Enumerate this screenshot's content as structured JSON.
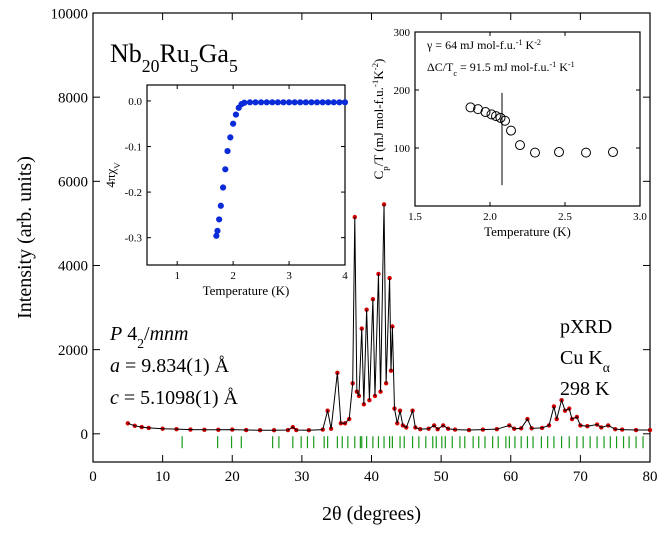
{
  "chart_data": [
    {
      "type": "xrd",
      "title": [
        {
          "t": "Nb"
        },
        {
          "t": "20",
          "s": "sub"
        },
        {
          "t": "Ru"
        },
        {
          "t": "5",
          "s": "sub"
        },
        {
          "t": "Ga"
        },
        {
          "t": "5",
          "s": "sub"
        }
      ],
      "x_label": "2θ (degrees)",
      "y_label": "Intensity (arb. units)",
      "annotations_left": [
        [
          {
            "t": "P",
            "i": true
          },
          {
            "t": " 4"
          },
          {
            "t": "2",
            "s": "sub"
          },
          {
            "t": "/"
          },
          {
            "t": "mnm",
            "i": true
          }
        ],
        [
          {
            "t": "a",
            "i": true
          },
          {
            "t": " = 9.834(1) Å"
          }
        ],
        [
          {
            "t": "c",
            "i": true
          },
          {
            "t": " = 5.1098(1) Å"
          }
        ]
      ],
      "annotations_right": [
        [
          {
            "t": "pXRD"
          }
        ],
        [
          {
            "t": "Cu K"
          },
          {
            "t": "α",
            "s": "sub"
          }
        ],
        [
          {
            "t": "298 K"
          }
        ]
      ],
      "xlim": [
        0,
        80
      ],
      "ylim": [
        -670,
        10000
      ],
      "xticks": [
        0,
        10,
        20,
        30,
        40,
        50,
        60,
        70,
        80
      ],
      "yticks": [
        0,
        2000,
        4000,
        6000,
        8000,
        10000
      ],
      "x": [
        5,
        6,
        7,
        8,
        10,
        12,
        14,
        16,
        18,
        20,
        22,
        24,
        26,
        28,
        28.7,
        29.2,
        31,
        33,
        33.7,
        34.2,
        35.1,
        35.6,
        36.2,
        36.8,
        37.3,
        37.6,
        37.9,
        38.2,
        38.6,
        38.9,
        39.3,
        39.7,
        40.2,
        40.5,
        41.0,
        41.3,
        41.8,
        42.1,
        42.6,
        42.8,
        43.0,
        43.3,
        43.7,
        44.1,
        44.5,
        45.0,
        45.9,
        46.3,
        47,
        48.2,
        49,
        49.5,
        50.3,
        51,
        52,
        54,
        56,
        58,
        59.8,
        60.5,
        61.5,
        62.4,
        63,
        64.5,
        65.5,
        66.2,
        66.6,
        67.3,
        67.8,
        68.4,
        68.8,
        69.5,
        70,
        71,
        72.4,
        73,
        74,
        75,
        76,
        78,
        80
      ],
      "series": [
        {
          "color": "#d40000",
          "line_color": "#000000",
          "values": [
            250,
            190,
            160,
            140,
            120,
            110,
            100,
            95,
            95,
            100,
            90,
            85,
            85,
            90,
            160,
            90,
            85,
            100,
            550,
            120,
            1450,
            250,
            250,
            350,
            1200,
            5150,
            1000,
            900,
            2500,
            700,
            2950,
            800,
            3200,
            900,
            3800,
            1000,
            5450,
            1200,
            3700,
            1500,
            2550,
            600,
            250,
            550,
            200,
            150,
            550,
            150,
            110,
            120,
            200,
            110,
            200,
            120,
            100,
            90,
            100,
            110,
            200,
            120,
            130,
            350,
            130,
            140,
            200,
            650,
            350,
            800,
            550,
            600,
            350,
            400,
            200,
            180,
            220,
            150,
            200,
            110,
            100,
            90,
            90
          ]
        }
      ],
      "bragg": {
        "color": "#1a9a1a",
        "y": -200,
        "x": [
          12.8,
          17.9,
          19.9,
          21.3,
          25.8,
          26.7,
          28.7,
          29.9,
          30.8,
          31.7,
          33.2,
          33.7,
          35.1,
          35.8,
          36.6,
          37.6,
          38.4,
          38.6,
          39.3,
          40.2,
          41.0,
          41.8,
          42.6,
          43.0,
          44.1,
          44.7,
          45.9,
          46.8,
          47.8,
          48.8,
          49.3,
          50.1,
          50.6,
          51.6,
          52.7,
          53.4,
          54.6,
          55.4,
          56.3,
          57.4,
          58.2,
          59.3,
          59.8,
          60.6,
          61.5,
          62.4,
          63.2,
          64.4,
          65.3,
          66.2,
          67.3,
          68.4,
          69.5,
          70.4,
          71.4,
          72.4,
          73.4,
          74.3,
          75.2,
          76.2,
          77.0,
          78.0,
          79.0
        ]
      }
    },
    {
      "type": "scatter",
      "x_label": "Temperature (K)",
      "y_label": [
        {
          "t": "4πχ"
        },
        {
          "t": "V",
          "s": "sub"
        }
      ],
      "xlim": [
        0.46,
        4
      ],
      "ylim": [
        -0.36,
        0.035
      ],
      "xticks": [
        1,
        2,
        3,
        4
      ],
      "yticks": [
        {
          "value": 0,
          "label": "0.0"
        },
        -0.1,
        -0.2,
        -0.3
      ],
      "x": [
        1.7,
        1.72,
        1.75,
        1.78,
        1.82,
        1.86,
        1.9,
        1.95,
        2.0,
        2.05,
        2.1,
        2.15,
        2.2,
        2.3,
        2.4,
        2.5,
        2.6,
        2.7,
        2.8,
        2.9,
        3.0,
        3.1,
        3.2,
        3.3,
        3.4,
        3.5,
        3.6,
        3.7,
        3.8,
        3.9,
        4.0
      ],
      "series": [
        {
          "color": "#0a2bd8",
          "fill": true,
          "values": [
            -0.296,
            -0.285,
            -0.26,
            -0.23,
            -0.19,
            -0.15,
            -0.11,
            -0.08,
            -0.05,
            -0.03,
            -0.015,
            -0.007,
            -0.004,
            -0.003,
            -0.003,
            -0.003,
            -0.003,
            -0.003,
            -0.003,
            -0.003,
            -0.003,
            -0.003,
            -0.003,
            -0.003,
            -0.003,
            -0.003,
            -0.003,
            -0.003,
            -0.003,
            -0.003,
            -0.003
          ]
        }
      ]
    },
    {
      "type": "scatter",
      "x_label": "Temperature (K)",
      "y_label": [
        {
          "t": "C"
        },
        {
          "t": "p",
          "s": "sub"
        },
        {
          "t": "/T (mJ mol-f.u."
        },
        {
          "t": "-1",
          "s": "sup"
        },
        {
          "t": "K"
        },
        {
          "t": "-2",
          "s": "sup"
        },
        {
          "t": ")"
        }
      ],
      "annotations": [
        [
          {
            "t": "γ = 64 mJ mol-f.u."
          },
          {
            "t": "-1",
            "s": "sup"
          },
          {
            "t": " K"
          },
          {
            "t": "-2",
            "s": "sup"
          }
        ],
        [
          {
            "t": "ΔC/T"
          },
          {
            "t": "c",
            "s": "sub"
          },
          {
            "t": " = 91.5 mJ mol-f.u."
          },
          {
            "t": "-1",
            "s": "sup"
          },
          {
            "t": " K"
          },
          {
            "t": "-1",
            "s": "sup"
          }
        ]
      ],
      "xlim": [
        1.5,
        3.0
      ],
      "ylim": [
        0,
        300
      ],
      "xticks": [
        1.5,
        {
          "value": 2,
          "label": "2.0"
        },
        2.5,
        {
          "value": 3,
          "label": "3.0"
        }
      ],
      "yticks": [
        100,
        200,
        300
      ],
      "x": [
        1.87,
        1.92,
        1.97,
        2.01,
        2.04,
        2.07,
        2.1,
        2.14,
        2.2,
        2.3,
        2.46,
        2.64,
        2.82
      ],
      "series": [
        {
          "color": "#000000",
          "fill": false,
          "values": [
            170,
            167,
            162,
            158,
            155,
            152,
            147,
            130,
            105,
            92,
            93,
            92,
            93
          ]
        }
      ],
      "tc_line": {
        "x": 2.08,
        "y": [
          36,
          195
        ]
      }
    }
  ]
}
